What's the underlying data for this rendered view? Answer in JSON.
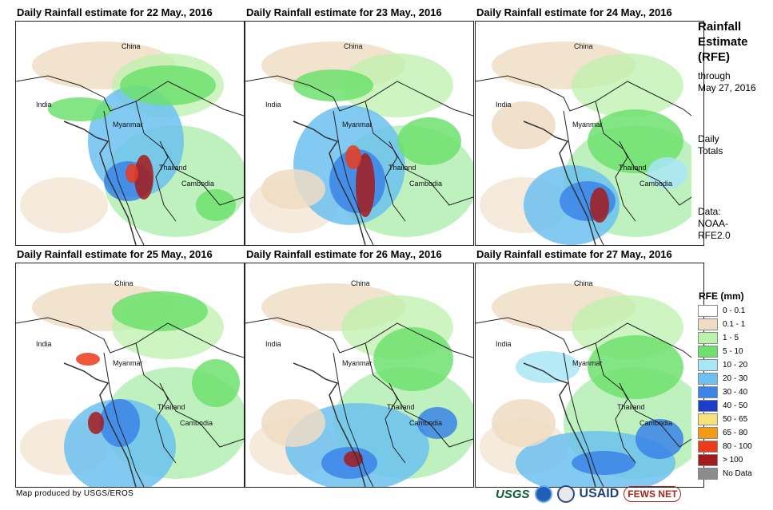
{
  "panels": [
    {
      "title": "Daily Rainfall estimate for 22 May., 2016"
    },
    {
      "title": "Daily Rainfall estimate for 23 May., 2016"
    },
    {
      "title": "Daily Rainfall estimate for 24 May., 2016"
    },
    {
      "title": "Daily Rainfall estimate for 25 May., 2016"
    },
    {
      "title": "Daily Rainfall estimate for 26 May., 2016"
    },
    {
      "title": "Daily Rainfall estimate for 27 May., 2016"
    }
  ],
  "labels": {
    "china": "China",
    "india": "India",
    "myanmar": "Myanmar",
    "thailand": "Thailand",
    "cambodia": "Cambodia"
  },
  "side": {
    "title_line1": "Rainfall",
    "title_line2": "Estimate",
    "title_line3": "(RFE)",
    "through": "through",
    "date": "May 27, 2016",
    "daily1": "Daily",
    "daily2": "Totals",
    "data1": "Data:",
    "data2": "NOAA-",
    "data3": "RFE2.0"
  },
  "legend": {
    "title": "RFE (mm)",
    "items": [
      {
        "label": "0 - 0.1",
        "color": "#ffffff"
      },
      {
        "label": "0.1 - 1",
        "color": "#efdcc3"
      },
      {
        "label": "1 - 5",
        "color": "#bdf2ac"
      },
      {
        "label": "5 - 10",
        "color": "#6fe06f"
      },
      {
        "label": "10 - 20",
        "color": "#a9e6f6"
      },
      {
        "label": "20 - 30",
        "color": "#6cc1f0"
      },
      {
        "label": "30 - 40",
        "color": "#3b84e8"
      },
      {
        "label": "40 - 50",
        "color": "#1c3fc9"
      },
      {
        "label": "50 - 65",
        "color": "#f8e27a"
      },
      {
        "label": "65 - 80",
        "color": "#f59a14"
      },
      {
        "label": "80 - 100",
        "color": "#ea3b1b"
      },
      {
        "label": "> 100",
        "color": "#a51a1a"
      },
      {
        "label": "No Data",
        "color": "#8c8c8c"
      }
    ]
  },
  "footer": {
    "credit": "Map produced by USGS/EROS"
  },
  "logos": {
    "usgs": "USGS",
    "usaid": "USAID",
    "fews": "FEWS NET"
  }
}
